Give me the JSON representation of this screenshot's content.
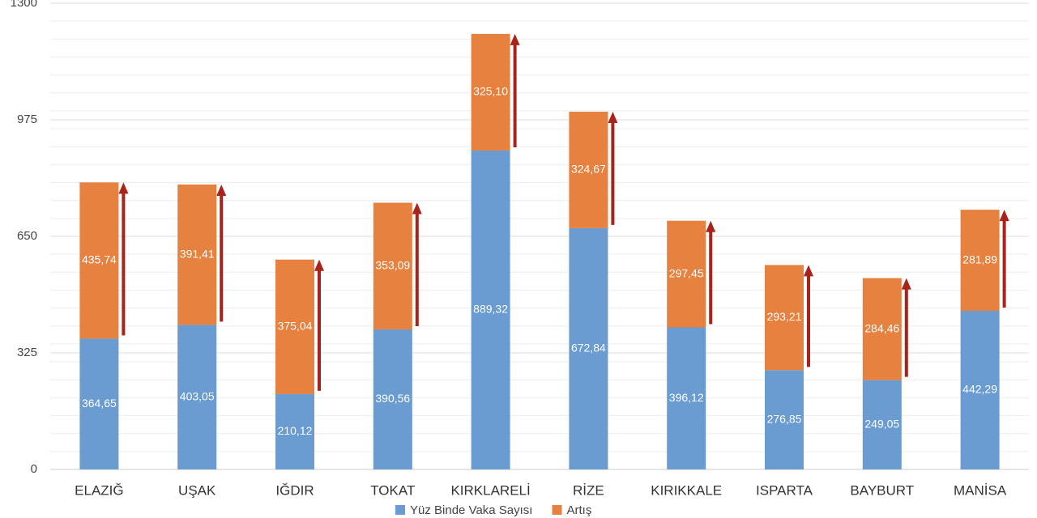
{
  "chart_data": {
    "type": "stacked-bar",
    "categories": [
      "ELAZIĞ",
      "UŞAK",
      "IĞDIR",
      "TOKAT",
      "KIRKLARELİ",
      "RİZE",
      "KIRIKKALE",
      "ISPARTA",
      "BAYBURT",
      "MANİSA"
    ],
    "series": [
      {
        "name": "Yüz Binde Vaka Sayısı",
        "color": "#6a9bd1",
        "values": [
          364.65,
          403.05,
          210.12,
          390.56,
          889.32,
          672.84,
          396.12,
          276.85,
          249.05,
          442.29
        ],
        "value_labels": [
          "364,65",
          "403,05",
          "210,12",
          "390,56",
          "889,32",
          "672,84",
          "396,12",
          "276,85",
          "249,05",
          "442,29"
        ]
      },
      {
        "name": "Artış",
        "color": "#e6813f",
        "values": [
          435.74,
          391.41,
          375.04,
          353.09,
          325.1,
          324.67,
          297.45,
          293.21,
          284.46,
          281.89
        ],
        "value_labels": [
          "435,74",
          "391,41",
          "375,04",
          "353,09",
          "325,10",
          "324,67",
          "297,45",
          "293,21",
          "284,46",
          "281,89"
        ]
      }
    ],
    "arrow_color": "#a8231b",
    "ylim": [
      0,
      1300
    ],
    "yticks": [
      0,
      325,
      650,
      975,
      1300
    ],
    "grid": true
  }
}
